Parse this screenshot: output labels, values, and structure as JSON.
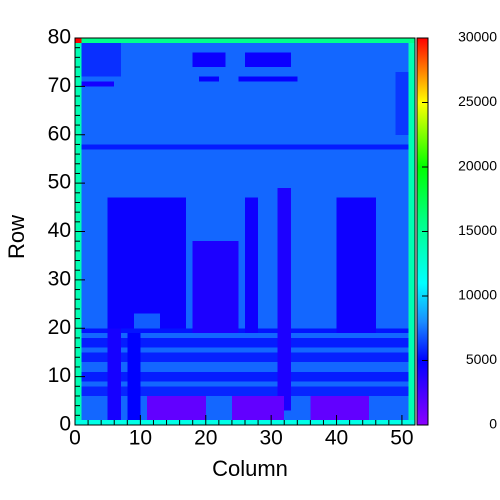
{
  "chart_data": {
    "type": "heatmap",
    "xlabel": "Column",
    "ylabel": "Row",
    "xlim": [
      0,
      52
    ],
    "ylim": [
      0,
      80
    ],
    "xticks": [
      0,
      10,
      20,
      30,
      40,
      50
    ],
    "yticks": [
      0,
      10,
      20,
      30,
      40,
      50,
      60,
      70,
      80
    ],
    "zlim": [
      0,
      30000
    ],
    "zticks": [
      0,
      5000,
      10000,
      15000,
      20000,
      25000,
      30000
    ],
    "colorscale": [
      [
        0,
        "#8c00ff"
      ],
      [
        5000,
        "#0000ff"
      ],
      [
        8000,
        "#1a8cff"
      ],
      [
        11000,
        "#00ffff"
      ],
      [
        16000,
        "#00ff80"
      ],
      [
        20000,
        "#00ff00"
      ],
      [
        25000,
        "#ffff00"
      ],
      [
        30000,
        "#ff0000"
      ]
    ],
    "regions": [
      {
        "x0": 0,
        "x1": 52,
        "y0": 0,
        "y1": 80,
        "value": 7200
      },
      {
        "x0": 1,
        "x1": 51,
        "y0": 57,
        "y1": 58,
        "value": 5600
      },
      {
        "x0": 1,
        "x1": 7,
        "y0": 72,
        "y1": 79,
        "value": 6000
      },
      {
        "x0": 1,
        "x1": 6,
        "y0": 70,
        "y1": 71,
        "value": 4300
      },
      {
        "x0": 18,
        "x1": 23,
        "y0": 74,
        "y1": 77,
        "value": 4600
      },
      {
        "x0": 26,
        "x1": 33,
        "y0": 74,
        "y1": 77,
        "value": 4600
      },
      {
        "x0": 19,
        "x1": 22,
        "y0": 71,
        "y1": 72,
        "value": 4800
      },
      {
        "x0": 25,
        "x1": 34,
        "y0": 71,
        "y1": 72,
        "value": 4800
      },
      {
        "x0": 49,
        "x1": 51,
        "y0": 60,
        "y1": 73,
        "value": 6200
      },
      {
        "x0": 1,
        "x1": 51,
        "y0": 19,
        "y1": 20,
        "value": 5400
      },
      {
        "x0": 1,
        "x1": 51,
        "y0": 16,
        "y1": 18,
        "value": 5600
      },
      {
        "x0": 1,
        "x1": 51,
        "y0": 13,
        "y1": 15,
        "value": 5700
      },
      {
        "x0": 1,
        "x1": 51,
        "y0": 9,
        "y1": 11,
        "value": 5600
      },
      {
        "x0": 1,
        "x1": 51,
        "y0": 6,
        "y1": 8,
        "value": 5800
      },
      {
        "x0": 5,
        "x1": 17,
        "y0": 20,
        "y1": 47,
        "value": 4600
      },
      {
        "x0": 9,
        "x1": 13,
        "y0": 20,
        "y1": 23,
        "value": 7000
      },
      {
        "x0": 18,
        "x1": 25,
        "y0": 19,
        "y1": 38,
        "value": 4000
      },
      {
        "x0": 26,
        "x1": 28,
        "y0": 19,
        "y1": 47,
        "value": 4500
      },
      {
        "x0": 31,
        "x1": 33,
        "y0": 3,
        "y1": 49,
        "value": 4000
      },
      {
        "x0": 40,
        "x1": 46,
        "y0": 19,
        "y1": 47,
        "value": 4500
      },
      {
        "x0": 5,
        "x1": 7,
        "y0": 1,
        "y1": 20,
        "value": 4200
      },
      {
        "x0": 8,
        "x1": 10,
        "y0": 1,
        "y1": 19,
        "value": 5000
      },
      {
        "x0": 11,
        "x1": 20,
        "y0": 1,
        "y1": 6,
        "value": 1500
      },
      {
        "x0": 24,
        "x1": 32,
        "y0": 1,
        "y1": 6,
        "value": 1500
      },
      {
        "x0": 36,
        "x1": 45,
        "y0": 1,
        "y1": 6,
        "value": 1500
      },
      {
        "x0": 0,
        "x1": 1,
        "y0": 0,
        "y1": 80,
        "value": 14000
      },
      {
        "x0": 51,
        "x1": 52,
        "y0": 0,
        "y1": 80,
        "value": 14000
      },
      {
        "x0": 0,
        "x1": 52,
        "y0": 79,
        "y1": 80,
        "value": 15500
      },
      {
        "x0": 0,
        "x1": 52,
        "y0": 0,
        "y1": 1,
        "value": 12000
      },
      {
        "x0": 0,
        "x1": 1,
        "y0": 79,
        "y1": 80,
        "value": 30000
      }
    ]
  }
}
